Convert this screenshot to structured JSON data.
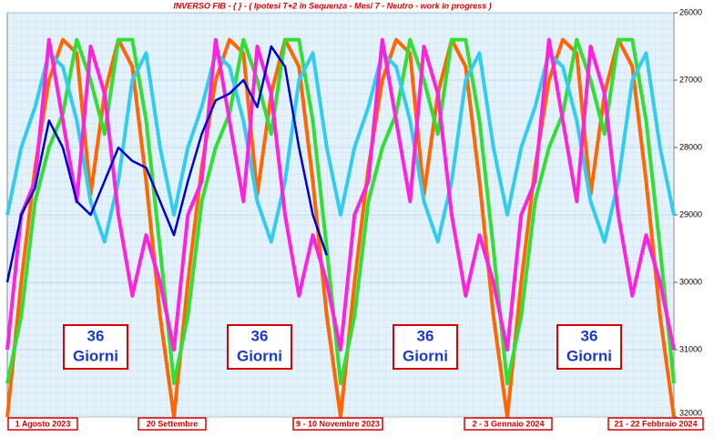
{
  "chart_data": {
    "type": "line",
    "title": "INVERSO FIB - { } - ( Ipotesi T+2 in Sequenza - Mesi 7 - Neutro - work in progress )",
    "x": [
      0,
      1,
      2,
      3,
      4,
      5,
      6,
      7,
      8,
      9,
      10,
      11,
      12,
      13,
      14,
      15,
      16,
      17,
      18,
      19,
      20,
      21,
      22,
      23,
      24,
      25,
      26,
      27,
      28,
      29,
      30,
      31,
      32,
      33,
      34,
      35,
      36,
      37,
      38,
      39,
      40,
      41,
      42,
      43,
      44,
      45,
      46,
      47,
      48
    ],
    "xlim": [
      0,
      48
    ],
    "ylim": [
      32000,
      26000
    ],
    "yticks": [
      26000,
      27000,
      28000,
      29000,
      30000,
      31000,
      32000
    ],
    "grid": true,
    "series": [
      {
        "color": "#ff6600",
        "values": [
          32000,
          30000,
          28300,
          27000,
          26400,
          26600,
          28700,
          27200,
          26400,
          26800,
          28500,
          30500,
          32000,
          30000,
          28300,
          27000,
          26400,
          26600,
          28700,
          27200,
          26400,
          26800,
          28500,
          30500,
          32000,
          30000,
          28300,
          27000,
          26400,
          26600,
          28700,
          27200,
          26400,
          26800,
          28500,
          30500,
          32000,
          30000,
          28300,
          27000,
          26400,
          26600,
          28700,
          27200,
          26400,
          26800,
          28500,
          30500,
          32000
        ]
      },
      {
        "color": "#33dd33",
        "values": [
          31500,
          30500,
          28800,
          28000,
          27500,
          26400,
          27000,
          27800,
          26400,
          26400,
          27600,
          29500,
          31500,
          30500,
          28800,
          28000,
          27500,
          26400,
          27000,
          27800,
          26400,
          26400,
          27600,
          29500,
          31500,
          30500,
          28800,
          28000,
          27500,
          26400,
          27000,
          27800,
          26400,
          26400,
          27600,
          29500,
          31500,
          30500,
          28800,
          28000,
          27500,
          26400,
          27000,
          27800,
          26400,
          26400,
          27600,
          29500,
          31500
        ]
      },
      {
        "color": "#33ccee",
        "values": [
          29000,
          28000,
          27400,
          26600,
          26800,
          27600,
          28800,
          29400,
          28500,
          27000,
          26600,
          28000,
          29000,
          28000,
          27400,
          26600,
          26800,
          27600,
          28800,
          29400,
          28500,
          27000,
          26600,
          28000,
          29000,
          28000,
          27400,
          26600,
          26800,
          27600,
          28800,
          29400,
          28500,
          27000,
          26600,
          28000,
          29000,
          28000,
          27400,
          26600,
          26800,
          27600,
          28800,
          29400,
          28500,
          27000,
          26600,
          28000,
          29000
        ]
      },
      {
        "color": "#ff22dd",
        "values": [
          31000,
          29000,
          28500,
          26400,
          27600,
          28800,
          26500,
          27200,
          29000,
          30200,
          29300,
          30000,
          31000,
          29000,
          28500,
          26400,
          27600,
          28800,
          26500,
          27200,
          29000,
          30200,
          29300,
          30000,
          31000,
          29000,
          28500,
          26400,
          27600,
          28800,
          26500,
          27200,
          29000,
          30200,
          29300,
          30000,
          31000,
          29000,
          28500,
          26400,
          27600,
          28800,
          26500,
          27200,
          29000,
          30200,
          29300,
          30000,
          31000
        ]
      },
      {
        "color": "#0000cc",
        "values": [
          30000,
          29000,
          28600,
          27600,
          28000,
          28800,
          29000,
          28500,
          28000,
          28200,
          28300,
          28800,
          29300,
          28500,
          27800,
          27300,
          27200,
          27000,
          27400,
          26500,
          26800,
          28000,
          29000,
          29600,
          null,
          null,
          null,
          null,
          null,
          null,
          null,
          null,
          null,
          null,
          null,
          null,
          null,
          null,
          null,
          null,
          null,
          null,
          null,
          null,
          null,
          null,
          null,
          null,
          null
        ]
      }
    ],
    "boxes": [
      [
        "36",
        "Giorni"
      ],
      [
        "36",
        "Giorni"
      ],
      [
        "36",
        "Giorni"
      ],
      [
        "36",
        "Giorni"
      ]
    ],
    "dates": [
      "1 Agosto 2023",
      "20 Settembre",
      "9 - 10 Novembre 2023",
      "2 - 3 Gennaio 2024",
      "21 - 22 Febbraio 2024"
    ]
  }
}
